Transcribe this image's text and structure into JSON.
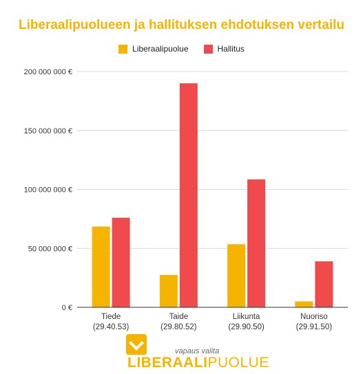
{
  "colors": {
    "title": "#f5b400",
    "liberaalipuolue": "#f5b400",
    "hallitus": "#f04a4d",
    "axis": "#333333",
    "grid": "#d9d9d9"
  },
  "chart_data": {
    "type": "bar",
    "title": "Liberaalipuolueen ja hallituksen ehdotuksen vertailu",
    "categories": [
      "Tiede\n(29.40.53)",
      "Taide\n(29.80.52)",
      "Liikunta\n(29.90.50)",
      "Nuoriso\n(29.91.50)"
    ],
    "series": [
      {
        "name": "Liberaalipuolue",
        "values": [
          68500000,
          27500000,
          53500000,
          5000000
        ]
      },
      {
        "name": "Hallitus",
        "values": [
          76000000,
          190000000,
          108500000,
          39000000
        ]
      }
    ],
    "ylim": [
      0,
      200000000
    ],
    "yticks": [
      0,
      50000000,
      100000000,
      150000000,
      200000000
    ],
    "ytick_labels": [
      "0 €",
      "50 000 000 €",
      "100 000 000 €",
      "150 000 000 €",
      "200 000 000 €"
    ],
    "grid": true,
    "legend_position": "top-center"
  },
  "logo": {
    "slogan": "vapaus valita",
    "word_a": "LIBERAALI",
    "word_b": "PUOLUE"
  }
}
